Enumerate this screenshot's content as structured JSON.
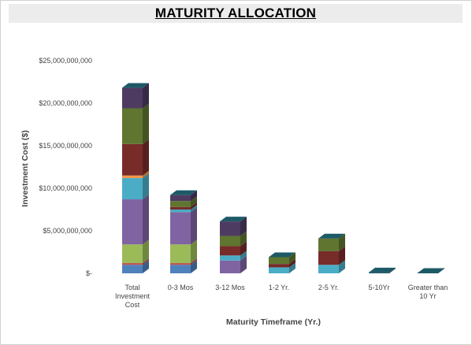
{
  "chart_data": {
    "type": "bar",
    "stacked": true,
    "three_d": true,
    "title": "MATURITY ALLOCATION",
    "xlabel": "Maturity Timeframe (Yr.)",
    "ylabel": "Investment Cost ($)",
    "ylim": [
      0,
      25000000000
    ],
    "yticks": [
      0,
      5000000000,
      10000000000,
      15000000000,
      20000000000,
      25000000000
    ],
    "ytick_labels": [
      "$-",
      "$5,000,000,000",
      "$10,000,000,000",
      "$15,000,000,000",
      "$20,000,000,000",
      "$25,000,000,000"
    ],
    "categories": [
      [
        "Total",
        "Investment",
        "Cost"
      ],
      [
        "0-3 Mos"
      ],
      [
        "3-12 Mos"
      ],
      [
        "1-2 Yr."
      ],
      [
        "2-5 Yr."
      ],
      [
        "5-10Yr"
      ],
      [
        "Greater than",
        "10 Yr"
      ]
    ],
    "grid": false,
    "legend": false,
    "series": [
      {
        "color": "#4f81bd",
        "values": [
          1000000000,
          1000000000,
          0,
          0,
          0,
          0,
          0
        ]
      },
      {
        "color": "#c0504d",
        "values": [
          200000000,
          200000000,
          0,
          0,
          0,
          0,
          0
        ]
      },
      {
        "color": "#9bbb59",
        "values": [
          2200000000,
          2200000000,
          0,
          0,
          0,
          0,
          0
        ]
      },
      {
        "color": "#8064a2",
        "values": [
          5300000000,
          3800000000,
          1500000000,
          0,
          0,
          0,
          0
        ]
      },
      {
        "color": "#4bacc6",
        "values": [
          2500000000,
          300000000,
          600000000,
          700000000,
          1000000000,
          0,
          0
        ]
      },
      {
        "color": "#f79646",
        "values": [
          300000000,
          0,
          0,
          0,
          0,
          0,
          0
        ]
      },
      {
        "color": "#772c2a",
        "values": [
          3700000000,
          300000000,
          1100000000,
          400000000,
          1600000000,
          0,
          0
        ]
      },
      {
        "color": "#5f7530",
        "values": [
          4200000000,
          700000000,
          1200000000,
          800000000,
          1500000000,
          0,
          0
        ]
      },
      {
        "color": "#4d3b62",
        "values": [
          2400000000,
          700000000,
          1700000000,
          0,
          0,
          0,
          0
        ]
      },
      {
        "color": "#205867",
        "values": [
          0,
          0,
          0,
          0,
          0,
          100000000,
          50000000
        ]
      }
    ]
  }
}
